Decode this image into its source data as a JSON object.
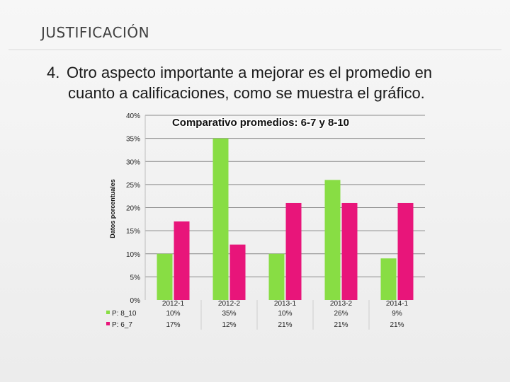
{
  "slide": {
    "header": "JUSTIFICACIÓN",
    "body_number": "4.",
    "body_line1": "Otro aspecto importante a mejorar es el promedio en",
    "body_line2": "cuanto a calificaciones, como se muestra el gráfico."
  },
  "colors": {
    "series_p8_10": "#88dd44",
    "series_p6_7": "#e8157a",
    "gridline": "#8a8a8a",
    "text": "#222222"
  },
  "chart_data": {
    "type": "bar",
    "title": "Comparativo promedios: 6-7 y 8-10",
    "ylabel": "Datos porcentuales",
    "xlabel": "",
    "ylim": [
      0,
      40
    ],
    "yticks": [
      "0%",
      "5%",
      "10%",
      "15%",
      "20%",
      "25%",
      "30%",
      "35%",
      "40%"
    ],
    "categories": [
      "2012-1",
      "2012-2",
      "2013-1",
      "2013-2",
      "2014-1"
    ],
    "series": [
      {
        "name": "P: 8_10",
        "values": [
          10,
          35,
          10,
          26,
          9
        ],
        "labels": [
          "10%",
          "35%",
          "10%",
          "26%",
          "9%"
        ]
      },
      {
        "name": "P: 6_7",
        "values": [
          17,
          12,
          21,
          21,
          21
        ],
        "labels": [
          "17%",
          "12%",
          "21%",
          "21%",
          "21%"
        ]
      }
    ],
    "grid": true,
    "legend": "data-table"
  }
}
